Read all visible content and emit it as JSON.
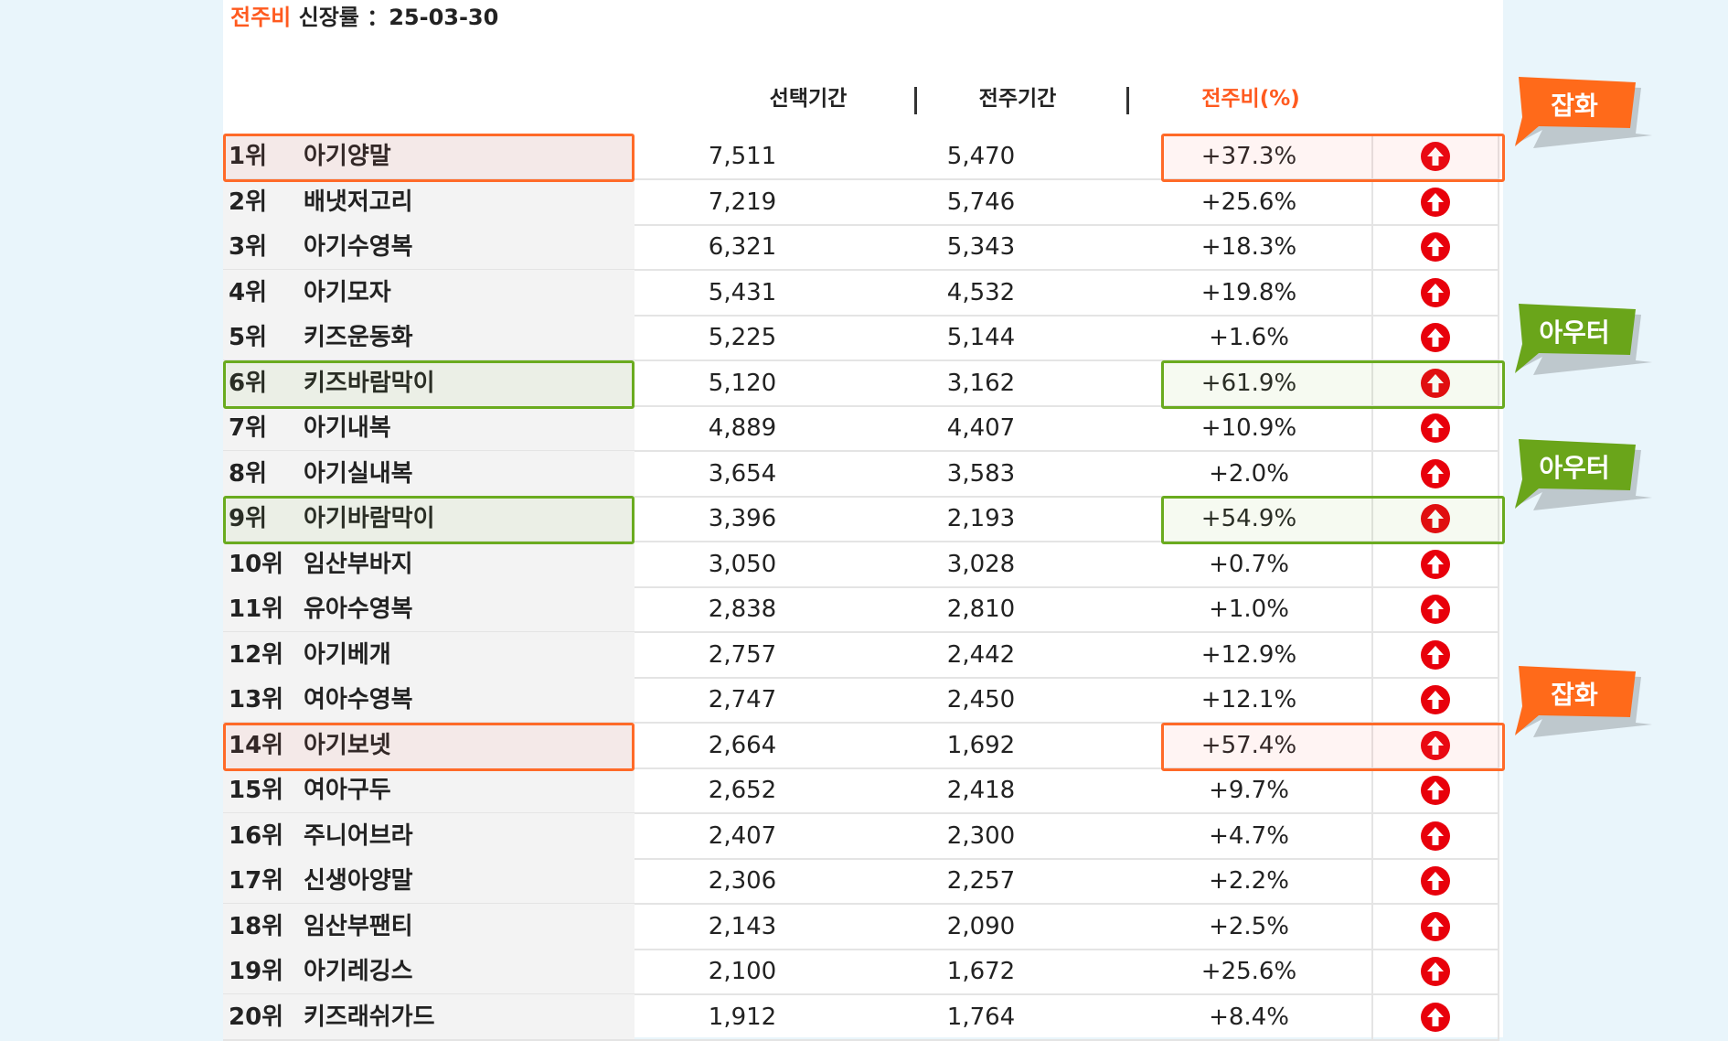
{
  "title": {
    "accent": "전주비",
    "rest": "신장률 ：25-03-30"
  },
  "columns": {
    "selected": "선택기간",
    "previous": "전주기간",
    "ratio": "전주비(%)"
  },
  "colors": {
    "accent": "#ff5a1f",
    "orange_tag": "#ff6a1a",
    "green_tag": "#6aa51a",
    "arrow_up": "#e8000b"
  },
  "rows": [
    {
      "rank": "1위",
      "name": "아기양말",
      "selected": "7,511",
      "previous": "5,470",
      "ratio": "+37.3%",
      "trend_icon": "arrow-up-icon"
    },
    {
      "rank": "2위",
      "name": "배냇저고리",
      "selected": "7,219",
      "previous": "5,746",
      "ratio": "+25.6%",
      "trend_icon": "arrow-up-icon"
    },
    {
      "rank": "3위",
      "name": "아기수영복",
      "selected": "6,321",
      "previous": "5,343",
      "ratio": "+18.3%",
      "trend_icon": "arrow-up-icon"
    },
    {
      "rank": "4위",
      "name": "아기모자",
      "selected": "5,431",
      "previous": "4,532",
      "ratio": "+19.8%",
      "trend_icon": "arrow-up-icon"
    },
    {
      "rank": "5위",
      "name": "키즈운동화",
      "selected": "5,225",
      "previous": "5,144",
      "ratio": "+1.6%",
      "trend_icon": "arrow-up-icon"
    },
    {
      "rank": "6위",
      "name": "키즈바람막이",
      "selected": "5,120",
      "previous": "3,162",
      "ratio": "+61.9%",
      "trend_icon": "arrow-up-icon"
    },
    {
      "rank": "7위",
      "name": "아기내복",
      "selected": "4,889",
      "previous": "4,407",
      "ratio": "+10.9%",
      "trend_icon": "arrow-up-icon"
    },
    {
      "rank": "8위",
      "name": "아기실내복",
      "selected": "3,654",
      "previous": "3,583",
      "ratio": "+2.0%",
      "trend_icon": "arrow-up-icon"
    },
    {
      "rank": "9위",
      "name": "아기바람막이",
      "selected": "3,396",
      "previous": "2,193",
      "ratio": "+54.9%",
      "trend_icon": "arrow-up-icon"
    },
    {
      "rank": "10위",
      "name": "임산부바지",
      "selected": "3,050",
      "previous": "3,028",
      "ratio": "+0.7%",
      "trend_icon": "arrow-up-icon"
    },
    {
      "rank": "11위",
      "name": "유아수영복",
      "selected": "2,838",
      "previous": "2,810",
      "ratio": "+1.0%",
      "trend_icon": "arrow-up-icon"
    },
    {
      "rank": "12위",
      "name": "아기베개",
      "selected": "2,757",
      "previous": "2,442",
      "ratio": "+12.9%",
      "trend_icon": "arrow-up-icon"
    },
    {
      "rank": "13위",
      "name": "여아수영복",
      "selected": "2,747",
      "previous": "2,450",
      "ratio": "+12.1%",
      "trend_icon": "arrow-up-icon"
    },
    {
      "rank": "14위",
      "name": "아기보넷",
      "selected": "2,664",
      "previous": "1,692",
      "ratio": "+57.4%",
      "trend_icon": "arrow-up-icon"
    },
    {
      "rank": "15위",
      "name": "여아구두",
      "selected": "2,652",
      "previous": "2,418",
      "ratio": "+9.7%",
      "trend_icon": "arrow-up-icon"
    },
    {
      "rank": "16위",
      "name": "주니어브라",
      "selected": "2,407",
      "previous": "2,300",
      "ratio": "+4.7%",
      "trend_icon": "arrow-up-icon"
    },
    {
      "rank": "17위",
      "name": "신생아양말",
      "selected": "2,306",
      "previous": "2,257",
      "ratio": "+2.2%",
      "trend_icon": "arrow-up-icon"
    },
    {
      "rank": "18위",
      "name": "임산부팬티",
      "selected": "2,143",
      "previous": "2,090",
      "ratio": "+2.5%",
      "trend_icon": "arrow-up-icon"
    },
    {
      "rank": "19위",
      "name": "아기레깅스",
      "selected": "2,100",
      "previous": "1,672",
      "ratio": "+25.6%",
      "trend_icon": "arrow-up-icon"
    },
    {
      "rank": "20위",
      "name": "키즈래쉬가드",
      "selected": "1,912",
      "previous": "1,764",
      "ratio": "+8.4%",
      "trend_icon": "arrow-up-icon"
    }
  ],
  "highlights": [
    {
      "row": 1,
      "color": "orange",
      "label": "잡화"
    },
    {
      "row": 6,
      "color": "green",
      "label": "아우터"
    },
    {
      "row": 9,
      "color": "green",
      "label": "아우터"
    },
    {
      "row": 14,
      "color": "orange",
      "label": "잡화"
    }
  ]
}
